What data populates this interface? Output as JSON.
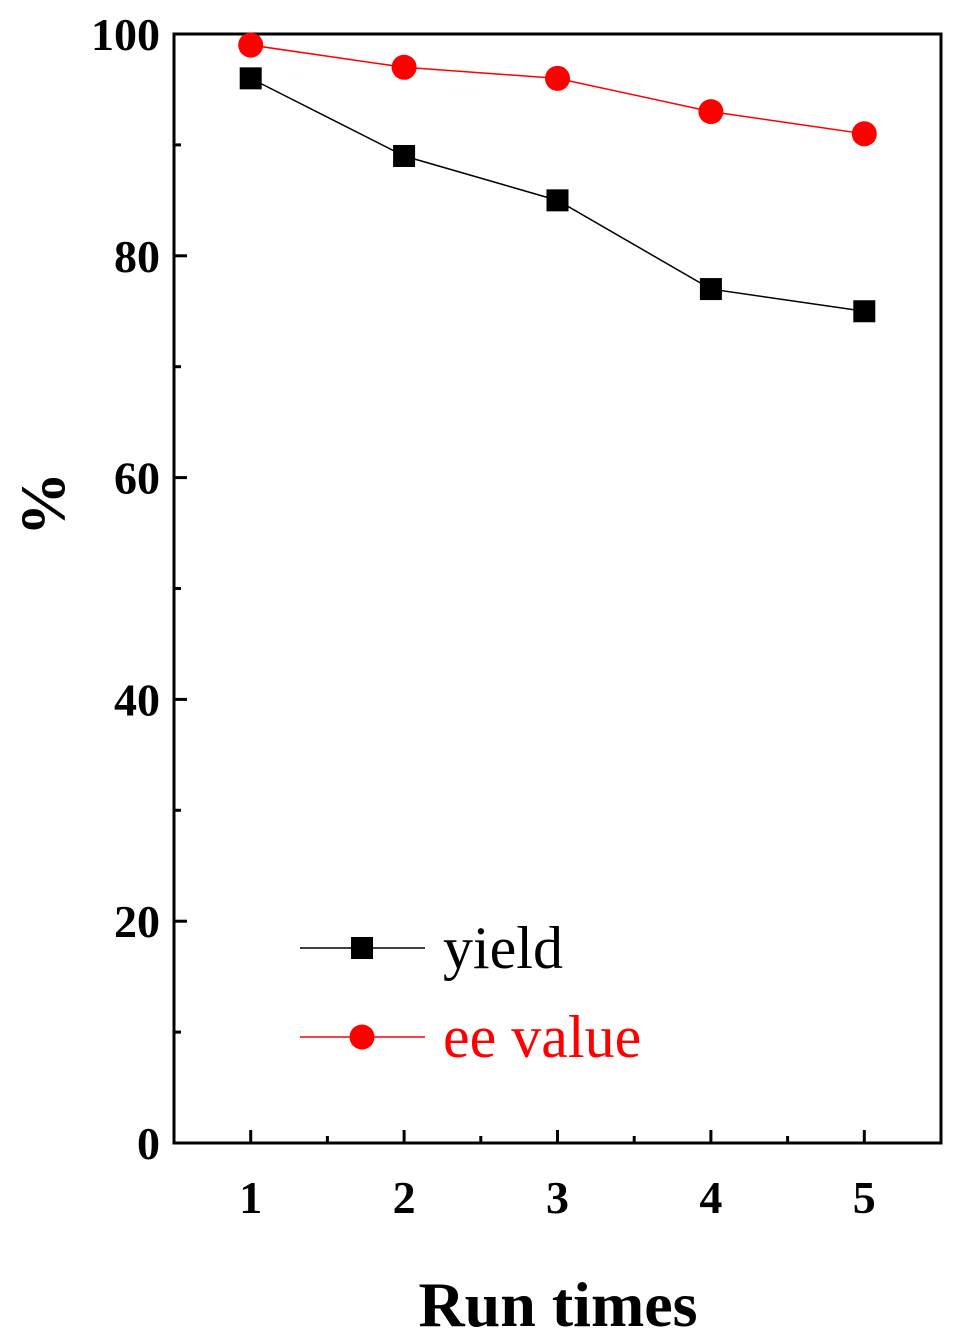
{
  "chart_data": {
    "type": "line",
    "title": "",
    "xlabel": "Run times",
    "ylabel": "%",
    "x": [
      1,
      2,
      3,
      4,
      5
    ],
    "xlim": [
      0.5,
      5.5
    ],
    "ylim": [
      0,
      100
    ],
    "x_ticks": [
      "1",
      "2",
      "3",
      "4",
      "5"
    ],
    "y_ticks": [
      "0",
      "20",
      "40",
      "60",
      "80",
      "100"
    ],
    "grid": false,
    "legend_position": "bottom-left",
    "series": [
      {
        "name": "yield",
        "values": [
          96,
          89,
          85,
          77,
          75
        ],
        "color": "#000000",
        "marker": "square"
      },
      {
        "name": "ee value",
        "values": [
          99,
          97,
          96,
          93,
          91
        ],
        "color": "#ff0000",
        "marker": "circle"
      }
    ]
  }
}
